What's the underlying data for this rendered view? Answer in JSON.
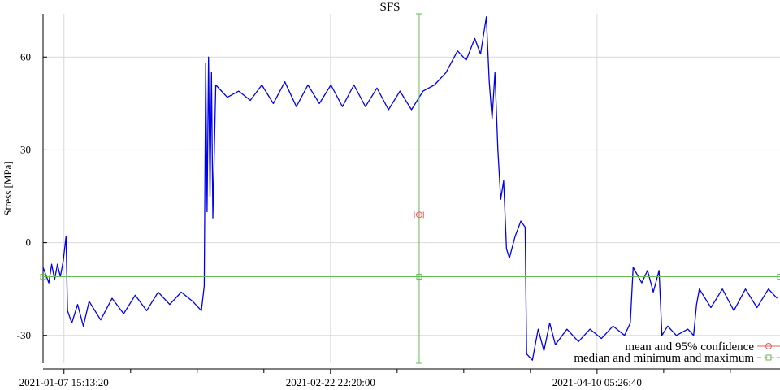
{
  "chart_data": {
    "type": "line",
    "title": "SFS",
    "xlabel": "",
    "ylabel": "Stress [MPa]",
    "ylim": [
      -39,
      74
    ],
    "xlim": [
      "2021-01-04 00:00:00",
      "2021-05-12 00:00:00"
    ],
    "grid": true,
    "legend_position": "bottom-right",
    "x_ticks": [
      "2021-01-07 15:13:20",
      "2021-02-22 22:20:00",
      "2021-04-10 05:26:40"
    ],
    "y_ticks": [
      -30,
      0,
      30,
      60
    ],
    "colors": {
      "series": "#0000ee",
      "mean": "#e06060",
      "median": "#66bb55",
      "grid": "#d9d9d9"
    },
    "series": [
      {
        "values": [
          [
            "2021-01-04 00:00:00",
            -8
          ],
          [
            "2021-01-05 00:00:00",
            -13
          ],
          [
            "2021-01-05 12:00:00",
            -7
          ],
          [
            "2021-01-06 00:00:00",
            -12
          ],
          [
            "2021-01-06 12:00:00",
            -7
          ],
          [
            "2021-01-07 00:00:00",
            -11
          ],
          [
            "2021-01-07 12:00:00",
            -6
          ],
          [
            "2021-01-08 00:00:00",
            2
          ],
          [
            "2021-01-08 06:00:00",
            -22
          ],
          [
            "2021-01-09 00:00:00",
            -26
          ],
          [
            "2021-01-10 00:00:00",
            -20
          ],
          [
            "2021-01-11 00:00:00",
            -27
          ],
          [
            "2021-01-12 00:00:00",
            -19
          ],
          [
            "2021-01-14 00:00:00",
            -25
          ],
          [
            "2021-01-16 00:00:00",
            -18
          ],
          [
            "2021-01-18 00:00:00",
            -23
          ],
          [
            "2021-01-20 00:00:00",
            -17
          ],
          [
            "2021-01-22 00:00:00",
            -22
          ],
          [
            "2021-01-24 00:00:00",
            -16
          ],
          [
            "2021-01-26 00:00:00",
            -20
          ],
          [
            "2021-01-28 00:00:00",
            -16
          ],
          [
            "2021-01-30 00:00:00",
            -19
          ],
          [
            "2021-01-31 12:00:00",
            -22
          ],
          [
            "2021-02-01 00:00:00",
            -14
          ],
          [
            "2021-02-01 06:00:00",
            58
          ],
          [
            "2021-02-01 12:00:00",
            10
          ],
          [
            "2021-02-01 18:00:00",
            60
          ],
          [
            "2021-02-02 00:00:00",
            15
          ],
          [
            "2021-02-02 06:00:00",
            55
          ],
          [
            "2021-02-02 12:00:00",
            8
          ],
          [
            "2021-02-03 00:00:00",
            51
          ],
          [
            "2021-02-05 00:00:00",
            47
          ],
          [
            "2021-02-07 00:00:00",
            49
          ],
          [
            "2021-02-09 00:00:00",
            46
          ],
          [
            "2021-02-11 00:00:00",
            51
          ],
          [
            "2021-02-13 00:00:00",
            45
          ],
          [
            "2021-02-15 00:00:00",
            52
          ],
          [
            "2021-02-17 00:00:00",
            44
          ],
          [
            "2021-02-19 00:00:00",
            51
          ],
          [
            "2021-02-21 00:00:00",
            45
          ],
          [
            "2021-02-23 00:00:00",
            51
          ],
          [
            "2021-02-25 00:00:00",
            44
          ],
          [
            "2021-02-27 00:00:00",
            51
          ],
          [
            "2021-03-01 00:00:00",
            44
          ],
          [
            "2021-03-03 00:00:00",
            50
          ],
          [
            "2021-03-05 00:00:00",
            43
          ],
          [
            "2021-03-07 00:00:00",
            49
          ],
          [
            "2021-03-09 00:00:00",
            43
          ],
          [
            "2021-03-11 00:00:00",
            49
          ],
          [
            "2021-03-13 00:00:00",
            51
          ],
          [
            "2021-03-15 00:00:00",
            55
          ],
          [
            "2021-03-17 00:00:00",
            62
          ],
          [
            "2021-03-18 12:00:00",
            59
          ],
          [
            "2021-03-20 00:00:00",
            66
          ],
          [
            "2021-03-21 00:00:00",
            61
          ],
          [
            "2021-03-22 00:00:00",
            73
          ],
          [
            "2021-03-22 12:00:00",
            52
          ],
          [
            "2021-03-23 00:00:00",
            40
          ],
          [
            "2021-03-23 12:00:00",
            55
          ],
          [
            "2021-03-24 00:00:00",
            30
          ],
          [
            "2021-03-24 12:00:00",
            14
          ],
          [
            "2021-03-25 00:00:00",
            20
          ],
          [
            "2021-03-25 12:00:00",
            -2
          ],
          [
            "2021-03-26 00:00:00",
            -5
          ],
          [
            "2021-03-27 00:00:00",
            2
          ],
          [
            "2021-03-28 00:00:00",
            7
          ],
          [
            "2021-03-28 18:00:00",
            5
          ],
          [
            "2021-03-29 00:00:00",
            -36
          ],
          [
            "2021-03-30 00:00:00",
            -38
          ],
          [
            "2021-03-31 00:00:00",
            -28
          ],
          [
            "2021-04-01 00:00:00",
            -35
          ],
          [
            "2021-04-02 00:00:00",
            -26
          ],
          [
            "2021-04-03 00:00:00",
            -33
          ],
          [
            "2021-04-05 00:00:00",
            -28
          ],
          [
            "2021-04-07 00:00:00",
            -32
          ],
          [
            "2021-04-09 00:00:00",
            -28
          ],
          [
            "2021-04-11 00:00:00",
            -31
          ],
          [
            "2021-04-13 00:00:00",
            -27
          ],
          [
            "2021-04-15 00:00:00",
            -30
          ],
          [
            "2021-04-16 00:00:00",
            -26
          ],
          [
            "2021-04-16 12:00:00",
            -8
          ],
          [
            "2021-04-18 00:00:00",
            -13
          ],
          [
            "2021-04-19 00:00:00",
            -9
          ],
          [
            "2021-04-20 00:00:00",
            -16
          ],
          [
            "2021-04-21 00:00:00",
            -9
          ],
          [
            "2021-04-21 12:00:00",
            -30
          ],
          [
            "2021-04-22 12:00:00",
            -27
          ],
          [
            "2021-04-24 00:00:00",
            -30
          ],
          [
            "2021-04-26 00:00:00",
            -28
          ],
          [
            "2021-04-27 00:00:00",
            -30
          ],
          [
            "2021-04-27 12:00:00",
            -20
          ],
          [
            "2021-04-28 00:00:00",
            -15
          ],
          [
            "2021-04-30 00:00:00",
            -21
          ],
          [
            "2021-05-02 00:00:00",
            -15
          ],
          [
            "2021-05-04 00:00:00",
            -22
          ],
          [
            "2021-05-06 00:00:00",
            -15
          ],
          [
            "2021-05-08 00:00:00",
            -21
          ],
          [
            "2021-05-10 00:00:00",
            -15
          ],
          [
            "2021-05-11 12:00:00",
            -18
          ]
        ]
      }
    ],
    "mean_marker": {
      "x": "2021-03-10 08:00:00",
      "value": 9,
      "ci": [
        8.5,
        9.5
      ],
      "x_span": [
        "2021-03-09 12:00:00",
        "2021-03-11 02:00:00"
      ]
    },
    "median_marker": {
      "x": "2021-03-10 08:00:00",
      "value": -11,
      "min": -39,
      "max": 74,
      "x_span": [
        "2021-01-04 00:00:00",
        "2021-05-12 00:00:00"
      ]
    },
    "legend": [
      {
        "label": "mean and 95% confidence",
        "color": "#e06060",
        "marker": "circle"
      },
      {
        "label": "median and minimum and maximum",
        "color": "#66bb55",
        "marker": "square"
      }
    ]
  }
}
